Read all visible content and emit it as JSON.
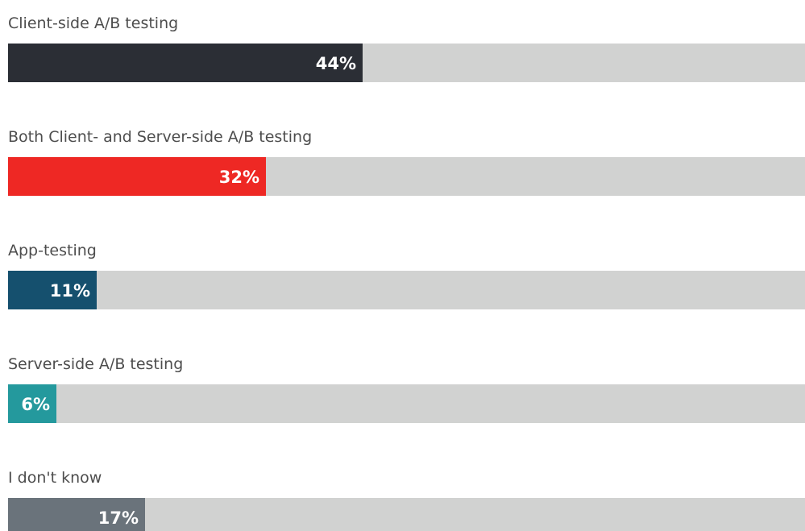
{
  "chart_data": {
    "type": "bar",
    "categories": [
      "Client-side A/B testing",
      "Both Client- and Server-side A/B testing",
      "App-testing",
      "Server-side A/B testing",
      "I don't know"
    ],
    "values": [
      44,
      32,
      11,
      6,
      17
    ],
    "value_labels": [
      "44%",
      "32%",
      "11%",
      "6%",
      "17%"
    ],
    "colors": [
      "#2b2e35",
      "#ee2824",
      "#15506e",
      "#24999d",
      "#6a737b"
    ],
    "xlim": [
      0,
      100
    ]
  }
}
